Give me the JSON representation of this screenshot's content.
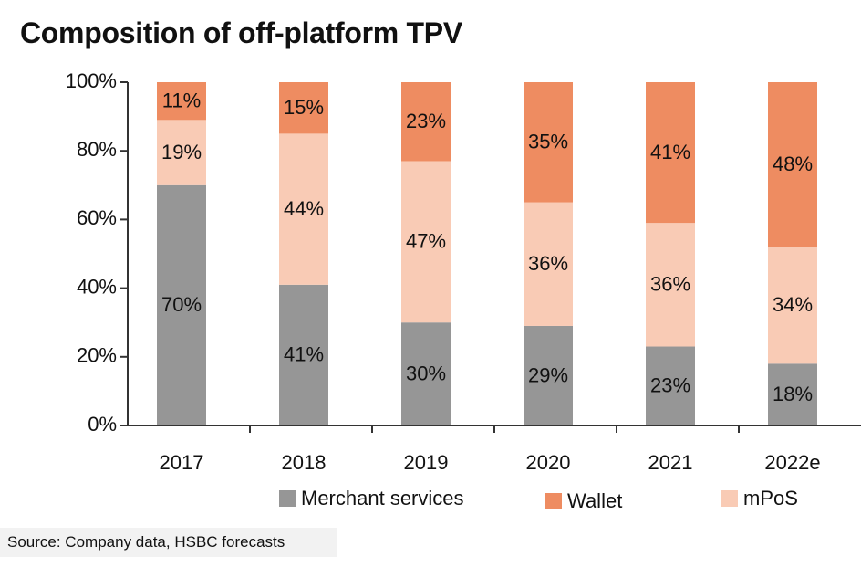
{
  "title": "Composition of off-platform TPV",
  "source": "Source: Company data, HSBC forecasts",
  "colors": {
    "merchant_services": "#969696",
    "wallet": "#ee8c61",
    "mpos": "#f9cbb5",
    "axis": "#333333"
  },
  "chart_data": {
    "type": "bar",
    "stacked": true,
    "categories": [
      "2017",
      "2018",
      "2019",
      "2020",
      "2021",
      "2022e"
    ],
    "ylim": [
      0,
      100
    ],
    "yticks": [
      "0%",
      "20%",
      "40%",
      "60%",
      "80%",
      "100%"
    ],
    "ytick_values": [
      0,
      20,
      40,
      60,
      80,
      100
    ],
    "legend_position": "bottom",
    "series": [
      {
        "name": "Merchant services",
        "key": "merchant_services",
        "values": [
          70,
          41,
          30,
          29,
          23,
          18
        ],
        "labels": [
          "70%",
          "41%",
          "30%",
          "29%",
          "23%",
          "18%"
        ]
      },
      {
        "name": "mPoS",
        "key": "mpos",
        "values": [
          19,
          44,
          47,
          36,
          36,
          34
        ],
        "labels": [
          "19%",
          "44%",
          "47%",
          "36%",
          "36%",
          "34%"
        ]
      },
      {
        "name": "Wallet",
        "key": "wallet",
        "values": [
          11,
          15,
          23,
          35,
          41,
          48
        ],
        "labels": [
          "11%",
          "15%",
          "23%",
          "35%",
          "41%",
          "48%"
        ]
      }
    ],
    "legend_order": [
      "merchant_services",
      "wallet",
      "mpos"
    ]
  }
}
